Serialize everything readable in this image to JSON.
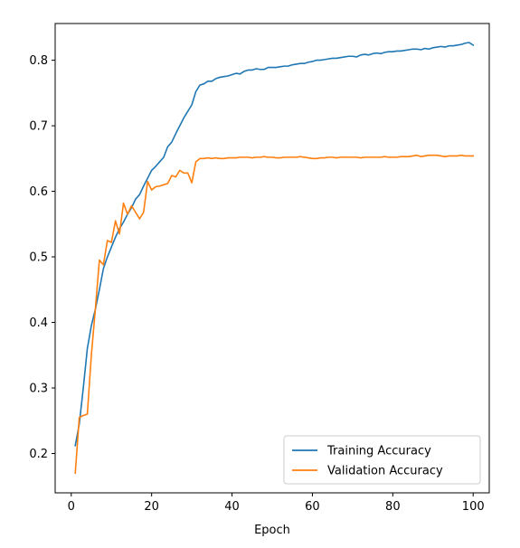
{
  "chart_data": {
    "type": "line",
    "title": "",
    "xlabel": "Epoch",
    "ylabel": "",
    "xlim": [
      -4,
      104
    ],
    "ylim": [
      0.14,
      0.856
    ],
    "xticks": [
      0,
      20,
      40,
      60,
      80,
      100
    ],
    "yticks": [
      0.2,
      0.3,
      0.4,
      0.5,
      0.6,
      0.7,
      0.8
    ],
    "grid": false,
    "legend_position": "lower-right",
    "x": [
      1,
      2,
      3,
      4,
      5,
      6,
      7,
      8,
      9,
      10,
      11,
      12,
      13,
      14,
      15,
      16,
      17,
      18,
      19,
      20,
      21,
      22,
      23,
      24,
      25,
      26,
      27,
      28,
      29,
      30,
      31,
      32,
      33,
      34,
      35,
      36,
      37,
      38,
      39,
      40,
      41,
      42,
      43,
      44,
      45,
      46,
      47,
      48,
      49,
      50,
      51,
      52,
      53,
      54,
      55,
      56,
      57,
      58,
      59,
      60,
      61,
      62,
      63,
      64,
      65,
      66,
      67,
      68,
      69,
      70,
      71,
      72,
      73,
      74,
      75,
      76,
      77,
      78,
      79,
      80,
      81,
      82,
      83,
      84,
      85,
      86,
      87,
      88,
      89,
      90,
      91,
      92,
      93,
      94,
      95,
      96,
      97,
      98,
      99,
      100
    ],
    "series": [
      {
        "name": "Training Accuracy",
        "color": "#1f77b4",
        "values": [
          0.212,
          0.245,
          0.3,
          0.36,
          0.395,
          0.42,
          0.45,
          0.482,
          0.5,
          0.515,
          0.53,
          0.543,
          0.553,
          0.565,
          0.575,
          0.588,
          0.595,
          0.608,
          0.62,
          0.632,
          0.638,
          0.645,
          0.652,
          0.668,
          0.675,
          0.688,
          0.7,
          0.712,
          0.722,
          0.732,
          0.752,
          0.762,
          0.764,
          0.768,
          0.768,
          0.772,
          0.774,
          0.775,
          0.776,
          0.778,
          0.78,
          0.779,
          0.783,
          0.785,
          0.785,
          0.787,
          0.786,
          0.786,
          0.789,
          0.789,
          0.789,
          0.79,
          0.791,
          0.791,
          0.793,
          0.794,
          0.795,
          0.795,
          0.797,
          0.798,
          0.8,
          0.8,
          0.801,
          0.802,
          0.803,
          0.803,
          0.804,
          0.805,
          0.806,
          0.806,
          0.805,
          0.808,
          0.809,
          0.808,
          0.81,
          0.811,
          0.81,
          0.812,
          0.813,
          0.813,
          0.814,
          0.814,
          0.815,
          0.816,
          0.817,
          0.817,
          0.816,
          0.818,
          0.817,
          0.819,
          0.82,
          0.821,
          0.82,
          0.822,
          0.822,
          0.823,
          0.824,
          0.826,
          0.827,
          0.823
        ]
      },
      {
        "name": "Validation Accuracy",
        "color": "#ff7f0e",
        "values": [
          0.17,
          0.255,
          0.258,
          0.26,
          0.35,
          0.42,
          0.495,
          0.488,
          0.525,
          0.522,
          0.555,
          0.535,
          0.582,
          0.565,
          0.578,
          0.568,
          0.558,
          0.568,
          0.615,
          0.602,
          0.607,
          0.608,
          0.61,
          0.612,
          0.624,
          0.622,
          0.632,
          0.628,
          0.628,
          0.613,
          0.645,
          0.65,
          0.65,
          0.651,
          0.65,
          0.651,
          0.65,
          0.65,
          0.651,
          0.651,
          0.651,
          0.652,
          0.652,
          0.652,
          0.651,
          0.652,
          0.652,
          0.653,
          0.652,
          0.652,
          0.651,
          0.651,
          0.652,
          0.652,
          0.652,
          0.652,
          0.653,
          0.652,
          0.651,
          0.65,
          0.65,
          0.651,
          0.651,
          0.652,
          0.652,
          0.651,
          0.652,
          0.652,
          0.652,
          0.652,
          0.652,
          0.651,
          0.652,
          0.652,
          0.652,
          0.652,
          0.652,
          0.653,
          0.652,
          0.652,
          0.652,
          0.653,
          0.653,
          0.653,
          0.654,
          0.655,
          0.653,
          0.654,
          0.655,
          0.655,
          0.655,
          0.654,
          0.653,
          0.654,
          0.654,
          0.654,
          0.655,
          0.654,
          0.654,
          0.654
        ]
      }
    ]
  }
}
